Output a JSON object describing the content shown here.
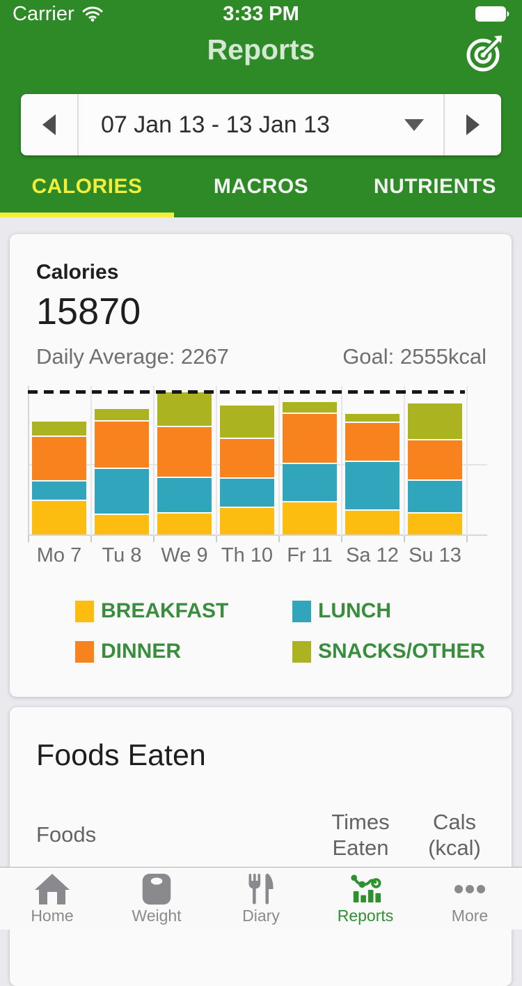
{
  "status_bar": {
    "carrier": "Carrier",
    "time": "3:33 PM",
    "battery": "full"
  },
  "header": {
    "title": "Reports"
  },
  "date_selector": {
    "range": "07 Jan 13 - 13 Jan 13"
  },
  "tabs": [
    {
      "label": "CALORIES",
      "active": true
    },
    {
      "label": "MACROS",
      "active": false
    },
    {
      "label": "NUTRIENTS",
      "active": false
    }
  ],
  "calories_card": {
    "title": "Calories",
    "total": "15870",
    "daily_average_label": "Daily Average: 2267",
    "goal_label": "Goal: 2555kcal"
  },
  "chart_data": {
    "type": "bar",
    "stacked": true,
    "title": "Calories",
    "categories": [
      "Mo 7",
      "Tu 8",
      "We 9",
      "Th 10",
      "Fr 11",
      "Sa 12",
      "Su 13"
    ],
    "series": [
      {
        "name": "BREAKFAST",
        "color": "#FDBD10",
        "values": [
          620,
          370,
          390,
          490,
          590,
          450,
          400
        ]
      },
      {
        "name": "LUNCH",
        "color": "#31A5BC",
        "values": [
          350,
          820,
          625,
          515,
          685,
          870,
          585
        ]
      },
      {
        "name": "DINNER",
        "color": "#F8821E",
        "values": [
          790,
          840,
          895,
          705,
          890,
          695,
          720
        ]
      },
      {
        "name": "SNACKS/OTHER",
        "color": "#ABB321",
        "values": [
          250,
          200,
          590,
          570,
          190,
          140,
          635
        ]
      }
    ],
    "totals_per_day": [
      2010,
      2230,
      2500,
      2280,
      2355,
      2155,
      2340
    ],
    "week_total": 15870,
    "daily_average": 2267,
    "goal_line": 2555,
    "ylim": [
      0,
      2650
    ],
    "xlabel": "",
    "ylabel": "",
    "grid": "horizontal",
    "legend_position": "bottom"
  },
  "foods_card": {
    "title": "Foods Eaten",
    "col_foods": "Foods",
    "col_times": "Times Eaten",
    "col_cals": "Cals (kcal)"
  },
  "tab_bar": [
    {
      "icon": "home",
      "label": "Home",
      "active": false
    },
    {
      "icon": "weight",
      "label": "Weight",
      "active": false
    },
    {
      "icon": "diary",
      "label": "Diary",
      "active": false
    },
    {
      "icon": "reports",
      "label": "Reports",
      "active": true
    },
    {
      "icon": "more",
      "label": "More",
      "active": false
    }
  ],
  "colors": {
    "header_green": "#2D8A26",
    "active_tab_yellow": "#F2EE3B",
    "legend_text_green": "#388E3C",
    "nav_active_green": "#2D9130",
    "page_background": "#E9E9EE",
    "card_background": "#FAFAFA",
    "goal_line_black": "#161616"
  }
}
